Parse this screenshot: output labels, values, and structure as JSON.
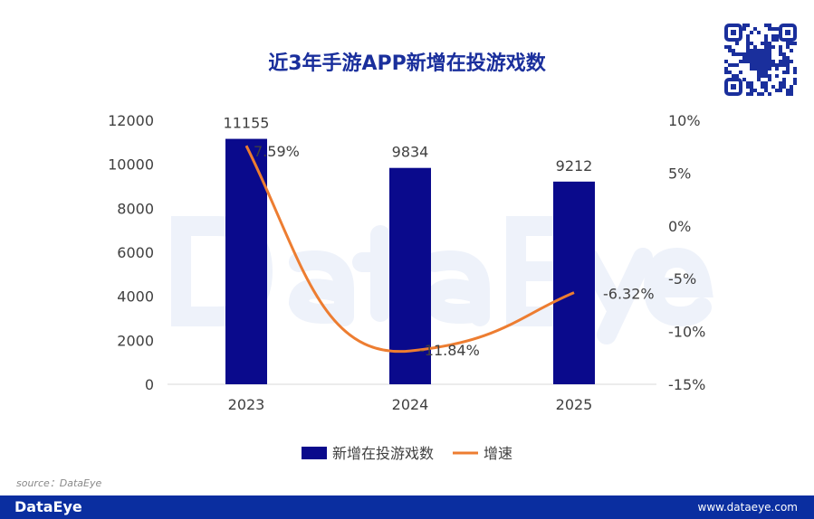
{
  "title": "近3年手游APP新增在投游戏数",
  "source": "source：DataEye",
  "footer": {
    "logo": "DataEye",
    "url": "www.dataeye.com"
  },
  "watermark": "DataEye",
  "colors": {
    "bar": "#0a0a8c",
    "line": "#ed7d31",
    "title": "#1a2f9c",
    "footer": "#0a2ea0"
  },
  "chart_data": {
    "type": "bar+line",
    "categories": [
      "2023",
      "2024",
      "2025"
    ],
    "series": [
      {
        "name": "新增在投游戏数",
        "type": "bar",
        "axis": "left",
        "values": [
          11155,
          9834,
          9212
        ],
        "labels": [
          "11155",
          "9834",
          "9212"
        ]
      },
      {
        "name": "增速",
        "type": "line",
        "axis": "right",
        "values": [
          7.59,
          -11.84,
          -6.32
        ],
        "labels": [
          "7.59%",
          "-11.84%",
          "-6.32%"
        ]
      }
    ],
    "left_axis": {
      "range": [
        0,
        12000
      ],
      "ticks": [
        "0",
        "2000",
        "4000",
        "6000",
        "8000",
        "10000",
        "12000"
      ]
    },
    "right_axis": {
      "range": [
        -15,
        10
      ],
      "unit": "%",
      "ticks": [
        "-15%",
        "-10%",
        "-5%",
        "0%",
        "5%",
        "10%"
      ]
    },
    "grid": false,
    "legend": "bottom"
  }
}
